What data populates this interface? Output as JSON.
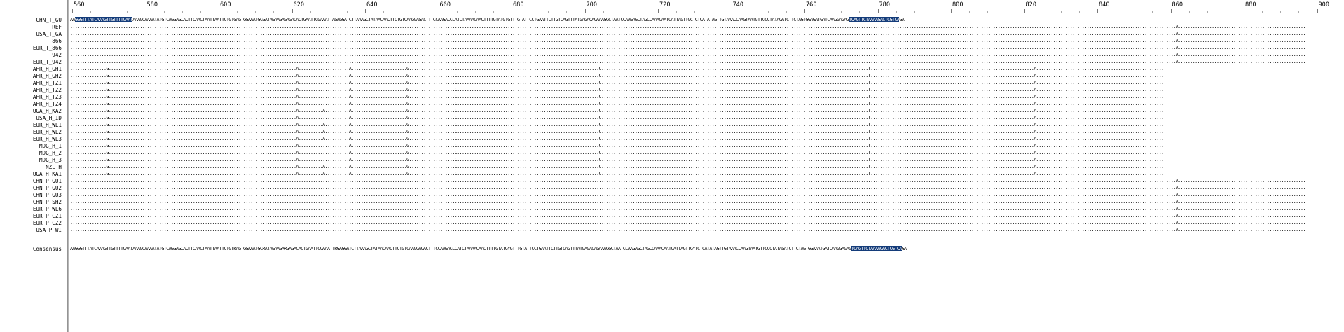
{
  "ruler": {
    "labels": [
      "560",
      "580",
      "600",
      "620",
      "640",
      "660",
      "680",
      "700",
      "720",
      "740",
      "760",
      "780",
      "800",
      "820",
      "840",
      "860",
      "880",
      "900"
    ]
  },
  "names": [
    "CHN_T_GU",
    "REF",
    "USA_T_GA",
    "866",
    "EUR_T_866",
    "942",
    "EUR_T_942",
    "AFR_H_GH1",
    "AFR_H_GH2",
    "AFR_H_TZ1",
    "AFR_H_TZ2",
    "AFR_H_TZ3",
    "AFR_H_TZ4",
    "UGA_H_KA2",
    "USA_H_ID",
    "EUR_H_WL1",
    "EUR_H_WL2",
    "EUR_H_WL3",
    "MDG_H_1",
    "MDG_H_2",
    "MDG_H_3",
    "NZL_H",
    "UGA_H_KA1",
    "CHN_P_GU1",
    "CHN_P_GU2",
    "CHN_P_GU3",
    "CHN_P_SH2",
    "EUR_P_WL6",
    "EUR_P_CZ1",
    "EUR_P_CZ2",
    "USA_P_WI"
  ],
  "consensus_label": "Consensus",
  "seq_top": {
    "pre": "AA",
    "hl1": "GGGTTTATCAAAGTTGTTTTCAAT",
    "mid": "AAAGCAAAATATGTCAGGAGCACTTCAACTAATTAATTCTGTGAGTGGAAATGCGATAGAAGAGAGACACTGAATTCGAAATTAGAGGATCTTAAAGCTATAACAACTTCTGTCAAGGAGACTTTCCAAGACCCATCTAAAACAACTTTTGTATGTGTTTGTATTCCTGAATTCTTGTCAGTTTATGAGACAGAAAGGCTAATCCAAGAGCTAGCCAAACAATCATTAGTTGCTCTCATATAGTTGTAAACCAAGTAATGTTCCCTATAGATCTTCTAGTGGAGATGATCAAGGAGAG",
    "hl2": "TCAGTTCTAAAAGACTCGTCA",
    "post": "GA"
  },
  "seq_consensus": {
    "pre": "AAGGGTTTATCAAAGTTGTTTTCAATAAAGCAAAATATGTCAGGAGCACTTCAACTAATTAATTCTGTRAGTGGAAATGCRATAGAAGARGAGACACTGAATTCGAAATTRGAGGATCTTAAAGCTATMACAACTTCTGTCAAGGAGACTTTCCAAGACCCATCTAAAACAACTTTTGTATGYGTTTGTATTCCTGAATTCTTGTCAGTTTATGAGACAGAAAGGCTAATCCAAGAGCTAGCCAAACAATCATTAGTTGYTCTCATATAGTTGTAAACCAAGTAATGTTCCCTATAGATCTTCTAGTGGAAATGATCAAGGAGAG",
    "hl": "TCAGTTCTAAAAGACTCGTCA",
    "post": "GA"
  },
  "rows": [
    "",
    "............................................................................................................................................................................................................................................................................................................................................................................................................................................................................A.....................................................",
    "............................................................................................................................................................................................................................................................................................................................................................................................................................................................................A.....................................................",
    "............................................................................................................................................................................................................................................................................................................................................................................................................................................................................A.....................................................",
    "............................................................................................................................................................................................................................................................................................................................................................................................................................................................................A.....................................................",
    "............................................................................................................................................................................................................................................................................................................................................................................................................................................................................A.....................................................",
    "............................................................................................................................................................................................................................................................................................................................................................................................................................................................................A.....................................................",
    "...............G..............................................................................A.....................A.......................G...................C...........................................................C...............................................................................................................T....................................................................A.....................................................",
    "...............G..............................................................................A.....................A.......................G...................C...........................................................C...............................................................................................................T....................................................................A.....................................................",
    "...............G..............................................................................A.....................A.......................G...................C...........................................................C...............................................................................................................T....................................................................A.....................................................",
    "...............G..............................................................................A.....................A.......................G...................C...........................................................C...............................................................................................................T....................................................................A.....................................................",
    "...............G..............................................................................A.....................A.......................G...................C...........................................................C...............................................................................................................T....................................................................A.....................................................",
    "...............G..............................................................................A.....................A.......................G...................C...........................................................C...............................................................................................................T....................................................................A.....................................................",
    "...............G..............................................................................A..........A..........A.......................G...................C...........................................................C...............................................................................................................T....................................................................A.....................................................",
    "...............G..............................................................................A.....................A.......................G...................C...........................................................C...............................................................................................................T....................................................................A.....................................................",
    "...............G..............................................................................A..........A..........A.......................G...................C...........................................................C...............................................................................................................T....................................................................A.....................................................",
    "...............G..............................................................................A..........A..........A.......................G...................C...........................................................C...............................................................................................................T....................................................................A.....................................................",
    "...............G..............................................................................A..........A..........A.......................G...................C...........................................................C...............................................................................................................T....................................................................A.....................................................",
    "...............G..............................................................................A.....................A.......................G...................C...........................................................C...............................................................................................................T....................................................................A.....................................................",
    "...............G..............................................................................A.....................A.......................G...................C...........................................................C...............................................................................................................T....................................................................A.....................................................",
    "...............G..............................................................................A.....................A.......................G...................C...........................................................C...............................................................................................................T....................................................................A.....................................................",
    "...............G..............................................................................A..........A..........A.......................G...................C...........................................................C...............................................................................................................T....................................................................A.....................................................",
    "...............G..............................................................................A..........A..........A.......................G...................C...........................................................C...............................................................................................................T....................................................................A.....................................................",
    "............................................................................................................................................................................................................................................................................................................................................................................................................................................................................A.....................................................",
    "............................................................................................................................................................................................................................................................................................................................................................................................................................................................................A.....................................................",
    "............................................................................................................................................................................................................................................................................................................................................................................................................................................................................A.....................................................",
    "............................................................................................................................................................................................................................................................................................................................................................................................................................................................................A.....................................................",
    "............................................................................................................................................................................................................................................................................................................................................................................................................................................................................A.....................................................",
    "............................................................................................................................................................................................................................................................................................................................................................................................................................................................................A.....................................................",
    "............................................................................................................................................................................................................................................................................................................................................................................................................................................................................A.....................................................",
    "............................................................................................................................................................................................................................................................................................................................................................................................................................................................................A....................................................."
  ],
  "colors": {
    "highlight": "#143c7a",
    "divider": "#6a6a6a"
  }
}
